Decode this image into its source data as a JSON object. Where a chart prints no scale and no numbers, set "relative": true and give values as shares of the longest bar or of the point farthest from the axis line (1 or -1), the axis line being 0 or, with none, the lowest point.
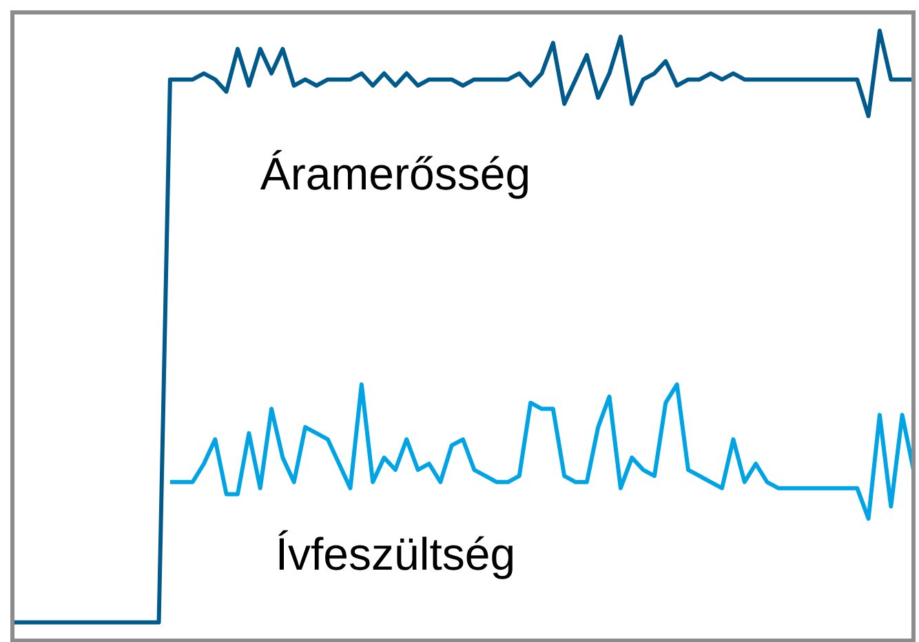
{
  "chart_data": {
    "type": "line",
    "relative": true,
    "legend": false,
    "grid": false,
    "marker": "none",
    "categories": [
      null,
      null,
      null,
      null,
      null,
      null,
      null,
      null,
      null,
      null,
      null,
      null,
      null,
      null,
      null,
      null,
      null,
      null,
      null,
      null,
      null,
      null,
      null,
      null,
      null,
      null,
      null,
      null,
      null,
      null,
      null,
      null,
      null,
      null,
      null,
      null,
      null,
      null,
      null,
      null,
      null,
      null,
      null,
      null,
      null,
      null,
      null,
      null,
      null,
      null,
      null,
      null,
      null,
      null,
      null,
      null,
      null,
      null,
      null,
      null,
      null,
      null,
      null,
      null,
      null,
      null,
      null,
      null,
      null,
      null,
      null,
      null,
      null,
      null,
      null,
      null,
      null,
      null,
      null,
      null,
      null
    ],
    "series": [
      {
        "name": "Áramerősség",
        "color": "#005a8c",
        "values": [
          0.03,
          0.03,
          0.03,
          0.03,
          0.03,
          0.03,
          0.03,
          0.03,
          0.03,
          0.03,
          0.03,
          0.03,
          0.03,
          0.03,
          0.92,
          0.92,
          0.92,
          0.93,
          0.92,
          0.9,
          0.97,
          0.91,
          0.97,
          0.93,
          0.97,
          0.91,
          0.92,
          0.91,
          0.92,
          0.92,
          0.92,
          0.93,
          0.91,
          0.93,
          0.91,
          0.93,
          0.91,
          0.92,
          0.92,
          0.92,
          0.91,
          0.92,
          0.92,
          0.92,
          0.92,
          0.93,
          0.91,
          0.93,
          0.98,
          0.88,
          0.92,
          0.96,
          0.89,
          0.93,
          0.99,
          0.88,
          0.92,
          0.93,
          0.95,
          0.91,
          0.92,
          0.92,
          0.93,
          0.92,
          0.93,
          0.92,
          0.92,
          0.92,
          0.92,
          0.92,
          0.92,
          0.92,
          0.92,
          0.92,
          0.92,
          0.92,
          0.86,
          1,
          0.92,
          0.92,
          0.92
        ]
      },
      {
        "name": "Ívfeszültség",
        "color": "#00a4e4",
        "values": [
          null,
          null,
          null,
          null,
          null,
          null,
          null,
          null,
          null,
          null,
          null,
          null,
          null,
          null,
          0.26,
          0.26,
          0.26,
          0.29,
          0.33,
          0.24,
          0.24,
          0.34,
          0.25,
          0.38,
          0.3,
          0.26,
          0.35,
          0.34,
          0.33,
          0.29,
          0.25,
          0.42,
          0.26,
          0.3,
          0.28,
          0.33,
          0.28,
          0.29,
          0.26,
          0.32,
          0.33,
          0.28,
          0.27,
          0.26,
          0.26,
          0.27,
          0.39,
          0.38,
          0.38,
          0.27,
          0.26,
          0.26,
          0.35,
          0.4,
          0.25,
          0.3,
          0.28,
          0.27,
          0.39,
          0.42,
          0.28,
          0.27,
          0.26,
          0.25,
          0.33,
          0.26,
          0.29,
          0.26,
          0.25,
          0.25,
          0.25,
          0.25,
          0.25,
          0.25,
          0.25,
          0.25,
          0.2,
          0.37,
          0.22,
          0.37,
          0.28
        ]
      }
    ]
  }
}
